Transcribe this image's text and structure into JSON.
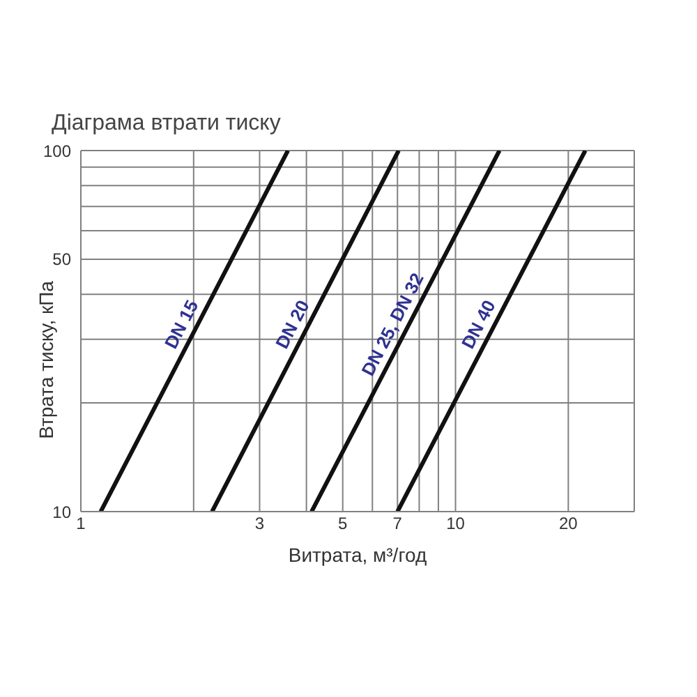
{
  "chart_data": {
    "type": "line",
    "title": "Діаграма втрати тиску",
    "xlabel": "Витрата, м³/год",
    "ylabel": "Втрата тиску, кПа",
    "log": "xy",
    "grid": true,
    "line_style": "solid",
    "xlim": [
      1,
      30
    ],
    "xticks": [
      1,
      {
        "value": 2,
        "label": null
      },
      3,
      {
        "value": 4,
        "label": null
      },
      5,
      {
        "value": 6,
        "label": null
      },
      7,
      {
        "value": 8,
        "label": null
      },
      {
        "value": 9,
        "label": null
      },
      10,
      20
    ],
    "ylim": [
      10,
      100
    ],
    "yticks": [
      10,
      {
        "value": 20,
        "label": null
      },
      {
        "value": 30,
        "label": null
      },
      {
        "value": 40,
        "label": null
      },
      50,
      {
        "value": 60,
        "label": null
      },
      {
        "value": 70,
        "label": null
      },
      {
        "value": 80,
        "label": null
      },
      {
        "value": 90,
        "label": null
      },
      100
    ],
    "series": [
      {
        "name": "DN 15",
        "color": "#111111",
        "x": [
          1.13,
          3.57
        ],
        "values": [
          10,
          100
        ]
      },
      {
        "name": "DN 20",
        "color": "#111111",
        "x": [
          2.24,
          7.05
        ],
        "values": [
          10,
          100
        ]
      },
      {
        "name": "DN 25, DN 32",
        "color": "#111111",
        "x": [
          4.13,
          13.1
        ],
        "values": [
          10,
          100
        ]
      },
      {
        "name": "DN 40",
        "color": "#111111",
        "x": [
          7,
          22.2
        ],
        "values": [
          10,
          100
        ]
      }
    ]
  }
}
